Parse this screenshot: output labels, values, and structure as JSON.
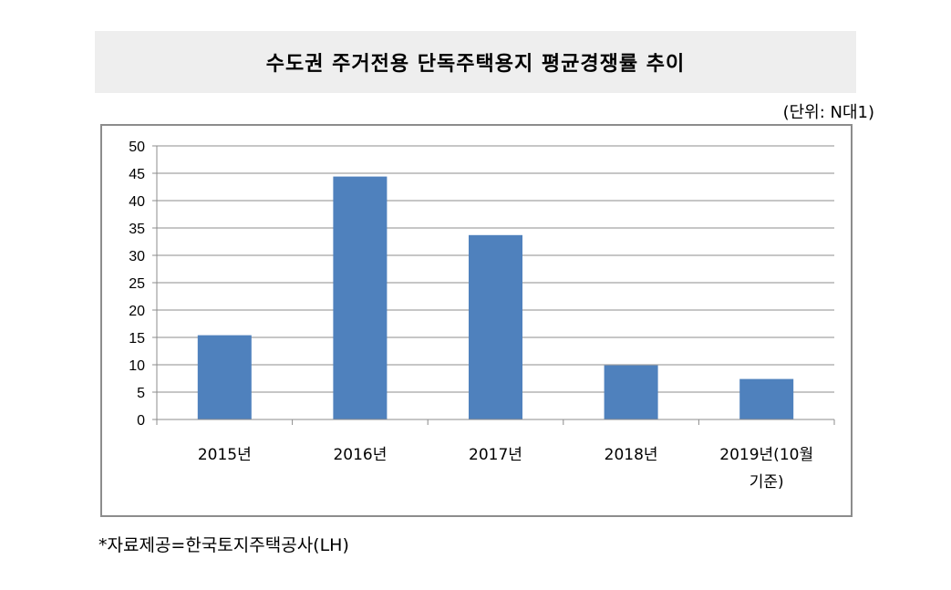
{
  "header": {
    "title": "수도권 주거전용 단독주택용지 평균경쟁률 추이",
    "unit": "(단위: N대1)"
  },
  "footer": {
    "source": "*자료제공=한국토지주택공사(LH)"
  },
  "chart_data": {
    "type": "bar",
    "categories": [
      [
        "2015년"
      ],
      [
        "2016년"
      ],
      [
        "2017년"
      ],
      [
        "2018년"
      ],
      [
        "2019년(10월",
        "기준)"
      ]
    ],
    "values": [
      15.4,
      44.4,
      33.7,
      9.9,
      7.4
    ],
    "title": "수도권 주거전용 단독주택용지 평균경쟁률 추이",
    "ylim": [
      0,
      50
    ],
    "yticks": [
      0,
      5,
      10,
      15,
      20,
      25,
      30,
      35,
      40,
      45,
      50
    ],
    "grid": true,
    "bar_color": "#4f81bd",
    "grid_color": "#8c8c8c"
  }
}
